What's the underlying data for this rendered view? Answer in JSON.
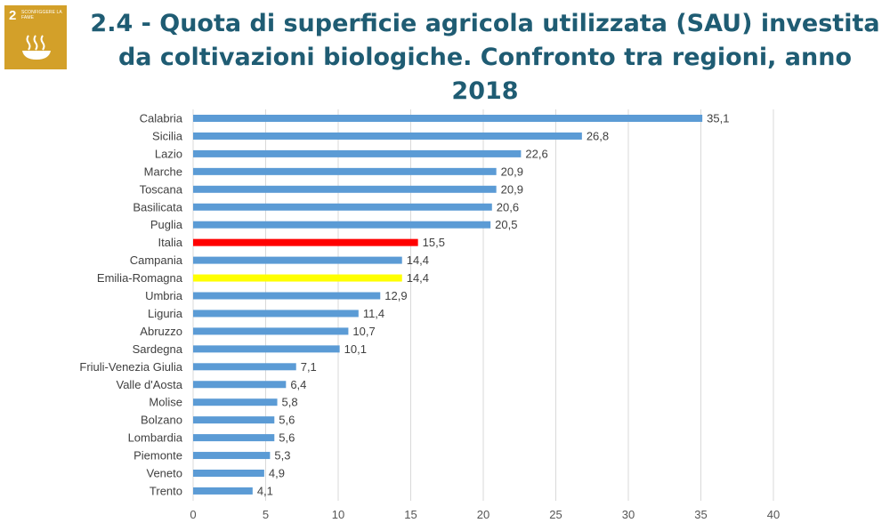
{
  "badge": {
    "number": "2",
    "text": "Sconfiggere la fame",
    "color": "#d3a029",
    "icon": "food-bowl-icon"
  },
  "header": {
    "title_line1": "2.4 - Quota di superficie agricola utilizzata (SAU) investita",
    "title_line2": "da coltivazioni biologiche. Confronto tra regioni, anno 2018"
  },
  "chart_data": {
    "type": "bar",
    "orientation": "horizontal",
    "title": "2.4 - Quota di superficie agricola utilizzata (SAU) investita da coltivazioni biologiche. Confronto tra regioni, anno 2018",
    "xlabel": "",
    "ylabel": "",
    "xlim": [
      0,
      40
    ],
    "xticks": [
      0,
      5,
      10,
      15,
      20,
      25,
      30,
      35,
      40
    ],
    "grid": "vertical",
    "legend": "none",
    "default_color": "#5b9bd5",
    "highlight_colors": {
      "Italia": "#ff0000",
      "Emilia-Romagna": "#ffff00"
    },
    "categories": [
      "Calabria",
      "Sicilia",
      "Lazio",
      "Marche",
      "Toscana",
      "Basilicata",
      "Puglia",
      "Italia",
      "Campania",
      "Emilia-Romagna",
      "Umbria",
      "Liguria",
      "Abruzzo",
      "Sardegna",
      "Friuli-Venezia Giulia",
      "Valle d'Aosta",
      "Molise",
      "Bolzano",
      "Lombardia",
      "Piemonte",
      "Veneto",
      "Trento"
    ],
    "values": [
      35.1,
      26.8,
      22.6,
      20.9,
      20.9,
      20.6,
      20.5,
      15.5,
      14.4,
      14.4,
      12.9,
      11.4,
      10.7,
      10.1,
      7.1,
      6.4,
      5.8,
      5.6,
      5.6,
      5.3,
      4.9,
      4.1
    ],
    "value_labels": [
      "35,1",
      "26,8",
      "22,6",
      "20,9",
      "20,9",
      "20,6",
      "20,5",
      "15,5",
      "14,4",
      "14,4",
      "12,9",
      "11,4",
      "10,7",
      "10,1",
      "7,1",
      "6,4",
      "5,8",
      "5,6",
      "5,6",
      "5,3",
      "4,9",
      "4,1"
    ]
  }
}
